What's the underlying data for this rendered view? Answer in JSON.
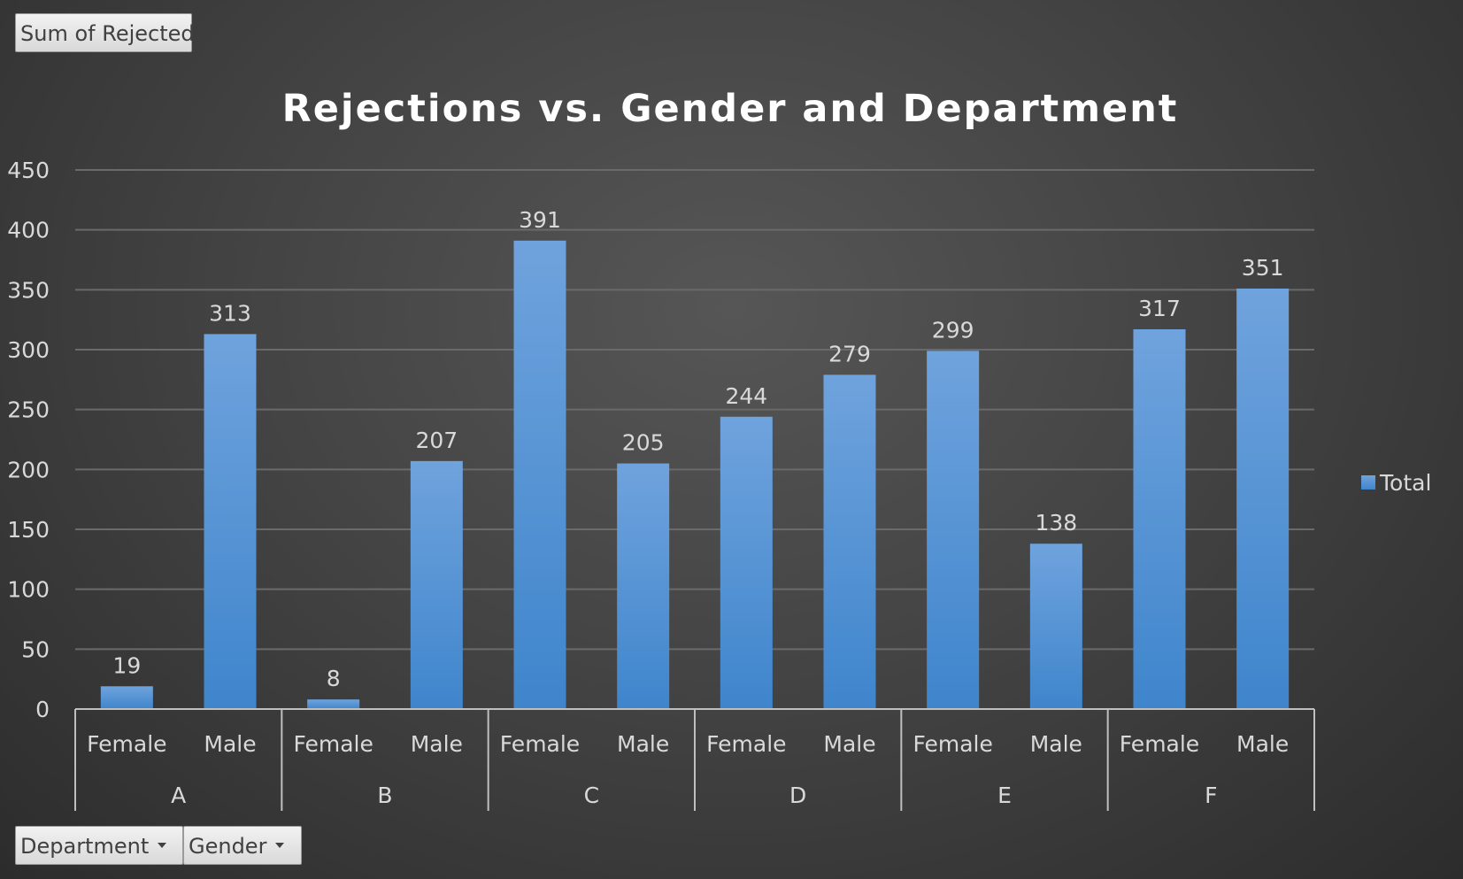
{
  "field_buttons": {
    "sum": "Sum of Rejected",
    "department": "Department",
    "gender": "Gender"
  },
  "colors": {
    "bar_top": "#6fa3dd",
    "bar_bottom": "#3f85cc",
    "gridline": "#6a6a6a",
    "text": "#d9d9d9",
    "title": "#ffffff"
  },
  "chart_data": {
    "type": "bar",
    "title": "Rejections vs. Gender and Department",
    "ylim": [
      0,
      450
    ],
    "yticks": [
      0,
      50,
      100,
      150,
      200,
      250,
      300,
      350,
      400,
      450
    ],
    "grid": true,
    "legend_position": "right",
    "groups": [
      {
        "name": "A",
        "categories": [
          "Female",
          "Male"
        ]
      },
      {
        "name": "B",
        "categories": [
          "Female",
          "Male"
        ]
      },
      {
        "name": "C",
        "categories": [
          "Female",
          "Male"
        ]
      },
      {
        "name": "D",
        "categories": [
          "Female",
          "Male"
        ]
      },
      {
        "name": "E",
        "categories": [
          "Female",
          "Male"
        ]
      },
      {
        "name": "F",
        "categories": [
          "Female",
          "Male"
        ]
      }
    ],
    "series": [
      {
        "name": "Total",
        "values": [
          19,
          313,
          8,
          207,
          391,
          205,
          244,
          279,
          299,
          138,
          317,
          351
        ]
      }
    ]
  }
}
